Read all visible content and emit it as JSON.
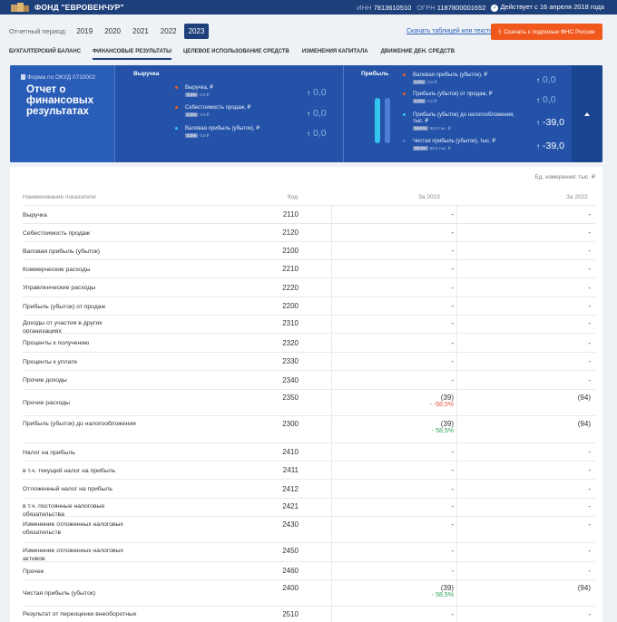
{
  "topbar": {
    "company": "ФОНД \"ЕВРОВЕНЧУР\"",
    "inn_label": "ИНН",
    "inn": "7813610510",
    "ogrn_label": "ОГРН",
    "ogrn": "1187800001652",
    "status": "Действует с 16 апреля 2018 года",
    "colors": {
      "bar": "#1d3f7a"
    }
  },
  "period": {
    "label": "Отчетный период:",
    "years": [
      "2019",
      "2020",
      "2021",
      "2022",
      "2023"
    ],
    "active_index": 4
  },
  "actions": {
    "text_link": "Скачать таблицей или текстом",
    "download_button": "Скачать с подписью ФНС России",
    "download_icon": "download-icon",
    "accent": "#f0581e"
  },
  "tabs": [
    "Бухгалтерский баланс",
    "Финансовые результаты",
    "Целевое использование средств",
    "Изменения капитала",
    "Движение ден. средств"
  ],
  "tabs_active": 1,
  "hero": {
    "form_code": "Форма по ОКУД 0710002",
    "title": "Отчет о финансовых результатах",
    "revenue_section": {
      "title": "Выручка",
      "items": [
        {
          "name": "Выручка, ₽",
          "pill": "0,0%",
          "sub": "0,0 ₽",
          "value": "0,0",
          "dot": "#f0581e"
        },
        {
          "name": "Себестоимость продаж, ₽",
          "pill": "0,0%",
          "sub": "0,0 ₽",
          "value": "0,0",
          "dot": "#f0581e"
        },
        {
          "name": "Валовая прибыль (убыток), ₽",
          "pill": "0,0%",
          "sub": "0,0 ₽",
          "value": "0,0",
          "dot": "#35c6ef"
        }
      ]
    },
    "profit_section": {
      "title": "Прибыль",
      "items": [
        {
          "name": "Валовая прибыль (убыток), ₽",
          "pill": "0,0%",
          "sub": "0,0 ₽",
          "value": "0,0",
          "dot": "#f0581e"
        },
        {
          "name": "Прибыль (убыток) от продаж, ₽",
          "pill": "0,0%",
          "sub": "0,0 ₽",
          "value": "0,0",
          "dot": "#f0581e"
        },
        {
          "name": "Прибыль (убыток) до налогообложения, тыс. ₽",
          "pill": "58,5%",
          "sub": "55,0 тыс. ₽",
          "value": "-39,0",
          "dot": "#35c6ef"
        },
        {
          "name": "Чистая прибыль (убыток), тыс. ₽",
          "pill": "58,5%",
          "sub": "55,0 тыс. ₽",
          "value": "-39,0",
          "dot": "#4a7fd4"
        }
      ]
    },
    "bars": {
      "color_a": "#35c6ef",
      "color_b": "#4a7fd4"
    }
  },
  "table": {
    "units": "Ед. измерения: тыс. ₽",
    "headers": {
      "name": "Наименование показателя",
      "code": "Код",
      "y2023": "За 2023",
      "y2022": "За 2022"
    },
    "rows": [
      {
        "name": "Выручка",
        "code": "2110",
        "v23": "-",
        "v22": "-"
      },
      {
        "name": "Себестоимость продаж",
        "code": "2120",
        "v23": "-",
        "v22": "-"
      },
      {
        "name": "Валовая прибыль (убыток)",
        "code": "2100",
        "v23": "-",
        "v22": "-"
      },
      {
        "name": "Коммерческие расходы",
        "code": "2210",
        "v23": "-",
        "v22": "-"
      },
      {
        "name": "Управленческие расходы",
        "code": "2220",
        "v23": "-",
        "v22": "-"
      },
      {
        "name": "Прибыль (убыток) от продаж",
        "code": "2200",
        "v23": "-",
        "v22": "-"
      },
      {
        "name": "Доходы от участия в других организациях",
        "code": "2310",
        "v23": "-",
        "v22": "-"
      },
      {
        "name": "Проценты к получению",
        "code": "2320",
        "v23": "-",
        "v22": "-"
      },
      {
        "name": "Проценты к уплате",
        "code": "2330",
        "v23": "-",
        "v22": "-"
      },
      {
        "name": "Прочие доходы",
        "code": "2340",
        "v23": "-",
        "v22": "-"
      },
      {
        "name": "Прочие расходы",
        "code": "2350",
        "v23": "(39)",
        "ch": "- -58,5%",
        "ch_type": "neg",
        "v22": "(94)"
      },
      {
        "name": "Прибыль (убыток) до налогообложения",
        "code": "2300",
        "v23": "(39)",
        "ch": "- 58,5%",
        "ch_type": "pos",
        "v22": "(94)"
      },
      {
        "name": "Налог на прибыль",
        "code": "2410",
        "v23": "-",
        "v22": "-"
      },
      {
        "name": "в т.ч. текущий налог на прибыль",
        "code": "2411",
        "v23": "-",
        "v22": "-"
      },
      {
        "name": "Отложенный налог на прибыль",
        "code": "2412",
        "v23": "-",
        "v22": "-"
      },
      {
        "name": "в т.ч. постоянные налоговые обязательства",
        "code": "2421",
        "v23": "-",
        "v22": "-"
      },
      {
        "name": "Изменение отложенных налоговых обязательств",
        "code": "2430",
        "v23": "-",
        "v22": "-"
      },
      {
        "name": "Изменение отложенных налоговых активов",
        "code": "2450",
        "v23": "-",
        "v22": "-"
      },
      {
        "name": "Прочее",
        "code": "2460",
        "v23": "-",
        "v22": "-"
      },
      {
        "name": "Чистая прибыль (убыток)",
        "code": "2400",
        "v23": "(39)",
        "ch": "- 58,5%",
        "ch_type": "pos",
        "v22": "(94)"
      },
      {
        "name": "Результат от переоценки внеоборотных",
        "code": "2510",
        "v23": "-",
        "v22": "-"
      }
    ]
  }
}
